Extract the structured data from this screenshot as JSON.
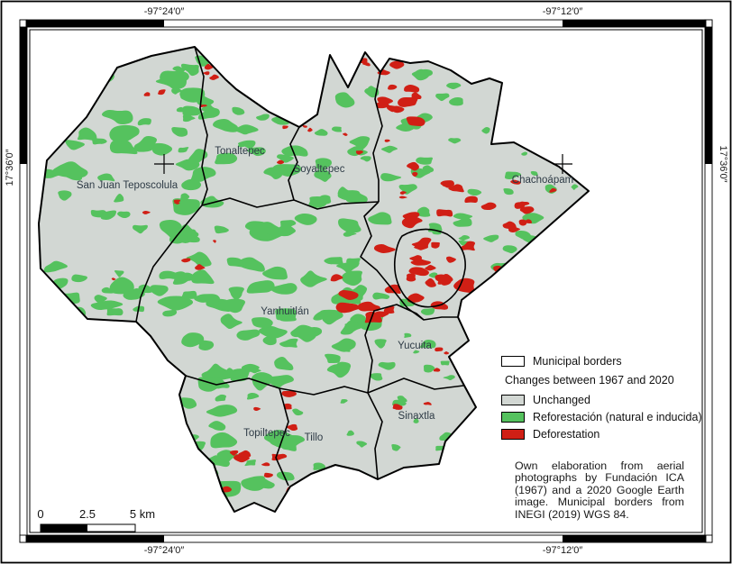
{
  "figure": {
    "type": "thematic-map",
    "subject": "Land cover change map of Nochixtlán valley municipalities"
  },
  "graticule": {
    "top": [
      "-97°24′0″",
      "-97°12′0″"
    ],
    "bottom": [
      "-97°24′0″",
      "-97°12′0″"
    ],
    "left": "17°36′0″",
    "right": "17°36′0″"
  },
  "municipalities": [
    {
      "name": "San Juan Teposcolula"
    },
    {
      "name": "Tonaltepec"
    },
    {
      "name": "Soyaltepec"
    },
    {
      "name": "Chachoápam"
    },
    {
      "name": "Yanhuitlán"
    },
    {
      "name": "Yucuita"
    },
    {
      "name": "Sinaxtla"
    },
    {
      "name": "Topiltepec"
    },
    {
      "name": "Tillo"
    }
  ],
  "legend": {
    "municipal_borders_label": "Municipal borders",
    "changes_header": "Changes between 1967 and 2020",
    "items": [
      {
        "label": "Unchanged",
        "color": "#d2d7d3"
      },
      {
        "label": "Reforestación (natural e inducida)",
        "color": "#55c25e"
      },
      {
        "label": "Deforestation",
        "color": "#d01f15"
      }
    ]
  },
  "scalebar": {
    "start": "0",
    "mid": "2.5",
    "end": "5 km"
  },
  "attribution": "Own elaboration from aerial photographs by Fundación ICA (1967) and a 2020 Google Earth image. Municipal borders from INEGI (2019) WGS 84.",
  "colors": {
    "unchanged": "#d2d7d3",
    "reforestation": "#55c25e",
    "deforestation": "#d01f15",
    "border": "#000000"
  }
}
